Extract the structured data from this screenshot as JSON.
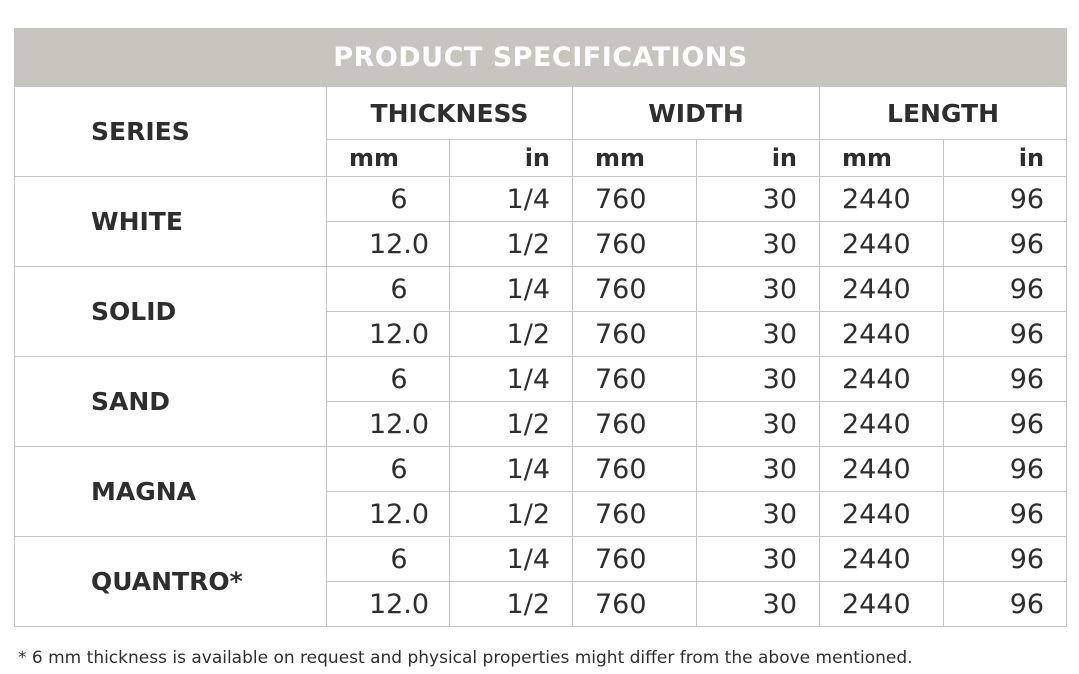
{
  "title": "PRODUCT SPECIFICATIONS",
  "columns": {
    "series": "SERIES",
    "groups": [
      {
        "name": "THICKNESS",
        "units": [
          "mm",
          "in"
        ]
      },
      {
        "name": "WIDTH",
        "units": [
          "mm",
          "in"
        ]
      },
      {
        "name": "LENGTH",
        "units": [
          "mm",
          "in"
        ]
      }
    ]
  },
  "rows": [
    {
      "series": "WHITE",
      "sizes": [
        [
          "6",
          "1/4",
          "760",
          "30",
          "2440",
          "96"
        ],
        [
          "12.0",
          "1/2",
          "760",
          "30",
          "2440",
          "96"
        ]
      ]
    },
    {
      "series": "SOLID",
      "sizes": [
        [
          "6",
          "1/4",
          "760",
          "30",
          "2440",
          "96"
        ],
        [
          "12.0",
          "1/2",
          "760",
          "30",
          "2440",
          "96"
        ]
      ]
    },
    {
      "series": "SAND",
      "sizes": [
        [
          "6",
          "1/4",
          "760",
          "30",
          "2440",
          "96"
        ],
        [
          "12.0",
          "1/2",
          "760",
          "30",
          "2440",
          "96"
        ]
      ]
    },
    {
      "series": "MAGNA",
      "sizes": [
        [
          "6",
          "1/4",
          "760",
          "30",
          "2440",
          "96"
        ],
        [
          "12.0",
          "1/2",
          "760",
          "30",
          "2440",
          "96"
        ]
      ]
    },
    {
      "series": "QUANTRO*",
      "sizes": [
        [
          "6",
          "1/4",
          "760",
          "30",
          "2440",
          "96"
        ],
        [
          "12.0",
          "1/2",
          "760",
          "30",
          "2440",
          "96"
        ]
      ]
    }
  ],
  "footnote": "* 6 mm thickness is available on request and physical properties might differ from the above mentioned."
}
